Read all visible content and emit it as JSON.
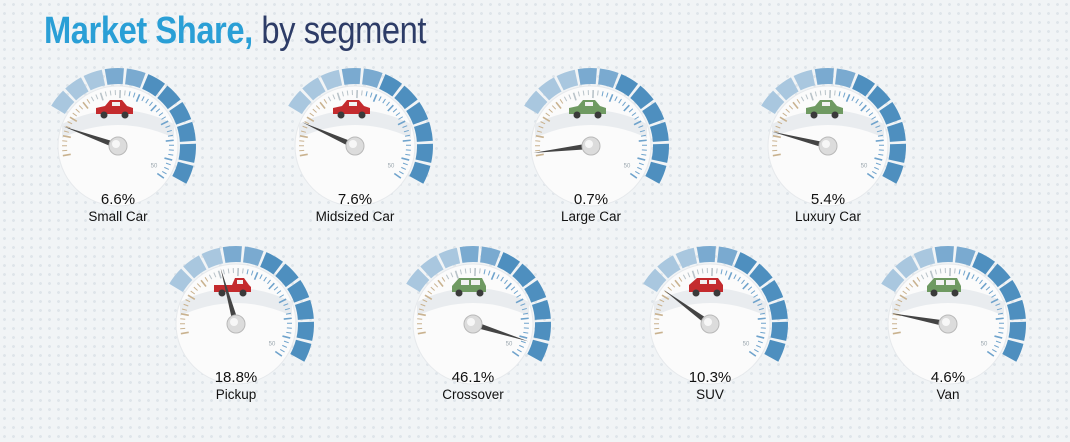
{
  "header": {
    "title_main": "Market Share,",
    "title_sub": "by segment"
  },
  "colors": {
    "title_main": "#2a9fd6",
    "title_sub": "#2d3c67",
    "gauge_band": "#4e8fbf",
    "gauge_band_light": "#a9c7df",
    "gauge_beige": "#c9b28f",
    "car_red": "#c42b2e",
    "car_green": "#6f9a62",
    "needle": "#444444"
  },
  "chart_data": {
    "type": "gauge",
    "title": "Market Share, by segment",
    "scale_max": 50,
    "scale_label": "50",
    "unit": "%",
    "gauges": [
      {
        "label": "Small Car",
        "value_text": "6.6%",
        "value": 6.6,
        "icon": "red-sedan-icon"
      },
      {
        "label": "Midsized Car",
        "value_text": "7.6%",
        "value": 7.6,
        "icon": "red-sedan-icon"
      },
      {
        "label": "Large Car",
        "value_text": "0.7%",
        "value": 0.7,
        "icon": "green-sedan-icon"
      },
      {
        "label": "Luxury Car",
        "value_text": "5.4%",
        "value": 5.4,
        "icon": "green-sedan-icon"
      },
      {
        "label": "Pickup",
        "value_text": "18.8%",
        "value": 18.8,
        "icon": "red-pickup-icon"
      },
      {
        "label": "Crossover",
        "value_text": "46.1%",
        "value": 46.1,
        "icon": "green-crossover-icon"
      },
      {
        "label": "SUV",
        "value_text": "10.3%",
        "value": 10.3,
        "icon": "red-suv-icon"
      },
      {
        "label": "Van",
        "value_text": "4.6%",
        "value": 4.6,
        "icon": "green-van-icon"
      }
    ]
  }
}
